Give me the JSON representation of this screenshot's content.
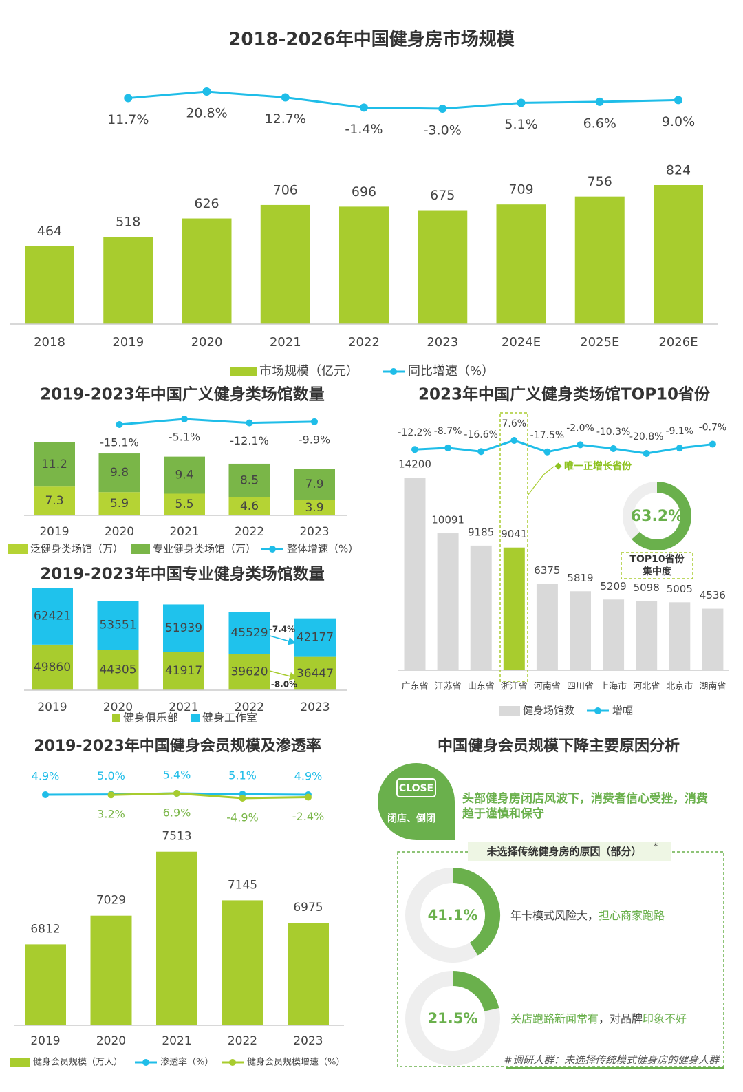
{
  "chart_data": [
    {
      "type": "bar",
      "title": "2018-2026年中国健身房市场规模",
      "categories": [
        "2018",
        "2019",
        "2020",
        "2021",
        "2022",
        "2023",
        "2024E",
        "2025E",
        "2026E"
      ],
      "series": [
        {
          "name": "市场规模（亿元）",
          "color": "#a8cc2e",
          "values": [
            464,
            518,
            626,
            706,
            696,
            675,
            709,
            756,
            824
          ]
        },
        {
          "name": "同比增速（%）",
          "type": "line",
          "axis": "y2",
          "color": "#1fbde8",
          "values": [
            null,
            11.7,
            20.8,
            12.7,
            -1.4,
            -3.0,
            5.1,
            6.6,
            9.0
          ],
          "value_labels": [
            null,
            "11.7%",
            "20.8%",
            "12.7%",
            "-1.4%",
            "-3.0%",
            "5.1%",
            "6.6%",
            "9.0%"
          ]
        }
      ]
    },
    {
      "type": "stacked_bar",
      "title": "2019-2023年中国广义健身类场馆数量",
      "categories": [
        "2019",
        "2020",
        "2021",
        "2022",
        "2023"
      ],
      "series": [
        {
          "name": "泛健身类场馆（万）",
          "color": "#b5d334",
          "values": [
            7.3,
            5.9,
            5.5,
            4.6,
            3.9
          ]
        },
        {
          "name": "专业健身类场馆（万）",
          "color": "#7ab648",
          "values": [
            11.2,
            9.8,
            9.4,
            8.5,
            7.9
          ]
        },
        {
          "name": "整体增速（%）",
          "type": "line",
          "axis": "y2",
          "color": "#1fbde8",
          "values": [
            null,
            -15.1,
            -5.1,
            -12.1,
            -9.9
          ],
          "value_labels": [
            null,
            "-15.1%",
            "-5.1%",
            "-12.1%",
            "-9.9%"
          ]
        }
      ]
    },
    {
      "type": "stacked_bar",
      "title": "2019-2023年中国专业健身类场馆数量",
      "categories": [
        "2019",
        "2020",
        "2021",
        "2022",
        "2023"
      ],
      "series": [
        {
          "name": "健身俱乐部",
          "color": "#a8cc2e",
          "values": [
            49860,
            44305,
            41917,
            39620,
            36447
          ]
        },
        {
          "name": "健身工作室",
          "color": "#1fc2ec",
          "values": [
            62421,
            53551,
            51939,
            45529,
            42177
          ]
        }
      ],
      "annotations": [
        "-7.4%",
        "-8.0%"
      ]
    },
    {
      "type": "bar",
      "title": "2023年中国广义健身类场馆TOP10省份",
      "categories": [
        "广东省",
        "江苏省",
        "山东省",
        "浙江省",
        "河南省",
        "四川省",
        "上海市",
        "河北省",
        "北京市",
        "湖南省"
      ],
      "series": [
        {
          "name": "健身场馆数",
          "color": "#d9d9d9",
          "colors": [
            "#d9d9d9",
            "#d9d9d9",
            "#d9d9d9",
            "#a8cc2e",
            "#d9d9d9",
            "#d9d9d9",
            "#d9d9d9",
            "#d9d9d9",
            "#d9d9d9",
            "#d9d9d9"
          ],
          "values": [
            14200,
            10091,
            9185,
            9041,
            6375,
            5819,
            5209,
            5098,
            5005,
            4536
          ]
        },
        {
          "name": "增幅",
          "type": "line",
          "axis": "y2",
          "color": "#1fbde8",
          "values": [
            -12.2,
            -8.7,
            -16.6,
            7.6,
            -17.5,
            -2.0,
            -10.3,
            -20.8,
            -9.1,
            -0.7
          ],
          "value_labels": [
            "-12.2%",
            "-8.7%",
            "-16.6%",
            "7.6%",
            "-17.5%",
            "-2.0%",
            "-10.3%",
            "-20.8%",
            "-9.1%",
            "-0.7%"
          ]
        }
      ],
      "annotation": "唯一正增长省份",
      "donut": {
        "value": 63.2,
        "value_label": "63.2%",
        "label": [
          "TOP10省份",
          "集中度"
        ],
        "color": "#6ab04c"
      }
    },
    {
      "type": "bar",
      "title": "2019-2023年中国健身会员规模及渗透率",
      "categories": [
        "2019",
        "2020",
        "2021",
        "2022",
        "2023"
      ],
      "ylim": [
        6200,
        7600
      ],
      "series": [
        {
          "name": "健身会员规模（万人）",
          "color": "#a8cc2e",
          "values": [
            6812,
            7029,
            7513,
            7145,
            6975
          ]
        },
        {
          "name": "渗透率（%）",
          "type": "line",
          "axis": "y2",
          "color": "#1fbde8",
          "values": [
            4.9,
            5.0,
            5.4,
            5.1,
            4.9
          ],
          "value_labels": [
            "4.9%",
            "5.0%",
            "5.4%",
            "5.1%",
            "4.9%"
          ]
        },
        {
          "name": "健身会员规模增速（%）",
          "type": "line",
          "axis": "y2",
          "color": "#a8cc2e",
          "values": [
            null,
            3.2,
            6.9,
            -4.9,
            -2.4
          ],
          "value_labels": [
            null,
            "3.2%",
            "6.9%",
            "-4.9%",
            "-2.4%"
          ]
        }
      ]
    }
  ],
  "reasons": {
    "title": "中国健身会员规模下降主要原因分析",
    "badge": {
      "icon": "CLOSE",
      "label": "闭店、倒闭"
    },
    "headline": [
      "头部健身房闭店风波下，消费者信心受挫，消费",
      "趋于谨慎和保守"
    ],
    "box_title": "未选择传统健身房的原因（部分）",
    "box_mark": "*",
    "color": "#6ab04c",
    "items": [
      {
        "value": 41.1,
        "value_label": "41.1%",
        "text": [
          {
            "text": "年卡模式风险大，"
          },
          {
            "text": "担心商家跑路",
            "highlight": true
          }
        ]
      },
      {
        "value": 21.5,
        "value_label": "21.5%",
        "text": [
          {
            "text": "关店跑路新闻常有",
            "highlight": true
          },
          {
            "text": "，对品牌"
          },
          {
            "text": "印象不好",
            "highlight": true
          }
        ]
      }
    ],
    "footnote": "#调研人群：未选择传统模式健身房的健身人群"
  }
}
